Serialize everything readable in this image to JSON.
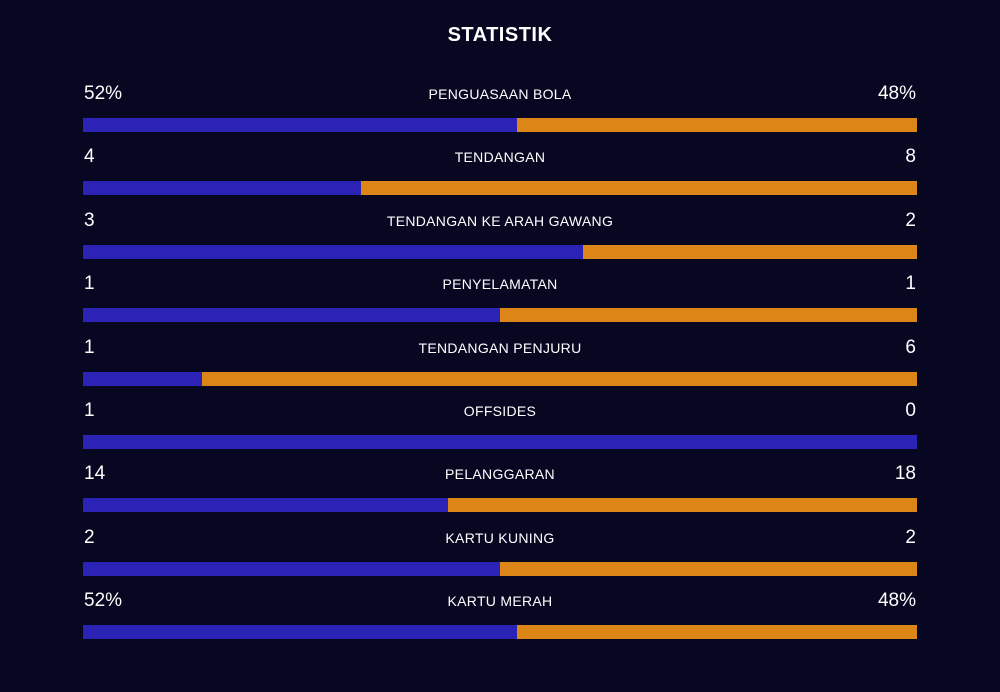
{
  "title": "STATISTIK",
  "colors": {
    "background": "#080722",
    "home": "#2b23b5",
    "away": "#dc8617"
  },
  "stats": [
    {
      "label": "PENGUASAAN BOLA",
      "home": "52%",
      "away": "48%",
      "home_share": 0.52
    },
    {
      "label": "TENDANGAN",
      "home": "4",
      "away": "8",
      "home_share": 0.3333
    },
    {
      "label": "TENDANGAN KE ARAH GAWANG",
      "home": "3",
      "away": "2",
      "home_share": 0.6
    },
    {
      "label": "PENYELAMATAN",
      "home": "1",
      "away": "1",
      "home_share": 0.5
    },
    {
      "label": "TENDANGAN PENJURU",
      "home": "1",
      "away": "6",
      "home_share": 0.1429
    },
    {
      "label": "OFFSIDES",
      "home": "1",
      "away": "0",
      "home_share": 1.0
    },
    {
      "label": "PELANGGARAN",
      "home": "14",
      "away": "18",
      "home_share": 0.4375
    },
    {
      "label": "KARTU KUNING",
      "home": "2",
      "away": "2",
      "home_share": 0.5
    },
    {
      "label": "KARTU MERAH",
      "home": "52%",
      "away": "48%",
      "home_share": 0.52
    }
  ]
}
